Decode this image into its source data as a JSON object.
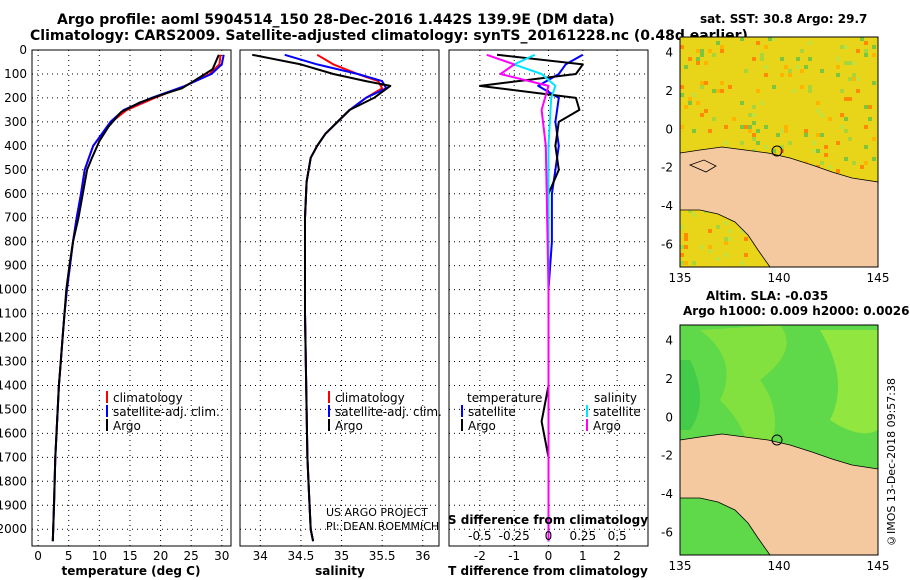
{
  "header": {
    "title1": "Argo profile: aoml 5904514_150 28-Dec-2016 1.442S 139.9E (DM data)",
    "title2": "Climatology: CARS2009. Satellite-adjusted climatology: synTS_20161228.nc (0.48d earlier)"
  },
  "colors": {
    "climatology": "#ff0000",
    "satellite": "#0000ff",
    "argo": "#000000",
    "sat_salinity": "#00e5ff",
    "clim_salinity": "#ff00ff"
  },
  "credit": {
    "line1": "US ARGO PROJECT",
    "line2": "PI: DEAN ROEMMICH"
  },
  "watermark": "©IMOS 13-Dec-2018 09:57:38",
  "maps": {
    "sst": {
      "title": "sat. SST: 30.8 Argo: 29.7"
    },
    "sla": {
      "title1": "Altim. SLA: -0.035",
      "title2": "Argo h1000: 0.009 h2000: 0.0026"
    },
    "xticks": [
      135,
      140,
      145
    ],
    "yticks": [
      4,
      2,
      0,
      -2,
      -4,
      -6
    ]
  },
  "chart_data": [
    {
      "type": "line",
      "id": "temperature",
      "xlabel": "temperature (deg C)",
      "xlim": [
        -1,
        31.5
      ],
      "xticks": [
        0,
        5,
        10,
        15,
        20,
        25,
        30
      ],
      "ylim": [
        0,
        2070
      ],
      "yticks": [
        0,
        100,
        200,
        300,
        400,
        500,
        600,
        700,
        800,
        900,
        1000,
        1100,
        1200,
        1300,
        1400,
        1500,
        1600,
        1700,
        1800,
        1900,
        2000
      ],
      "legend": {
        "position": "bottom-right",
        "items": [
          "climatology",
          "satellite-adj. clim.",
          "Argo"
        ]
      },
      "series": [
        {
          "name": "climatology",
          "x": [
            29.8,
            29.6,
            28.0,
            24.0,
            19.0,
            14.5,
            12.0,
            10.5,
            9.0,
            8.3,
            7.6,
            7.0,
            6.3,
            5.7,
            5.2,
            4.7,
            4.3,
            4.0,
            3.7,
            3.4,
            3.2,
            3.0,
            2.8,
            2.6,
            2.4
          ],
          "y": [
            20,
            60,
            100,
            150,
            200,
            250,
            300,
            350,
            400,
            450,
            500,
            600,
            700,
            800,
            900,
            1000,
            1100,
            1200,
            1300,
            1400,
            1500,
            1600,
            1700,
            1900,
            2050
          ]
        },
        {
          "name": "satellite-adj. clim.",
          "x": [
            30.3,
            30.0,
            28.3,
            24.0,
            18.5,
            14.0,
            11.8,
            10.4,
            9.0,
            8.3,
            7.6,
            7.0,
            6.3,
            5.7,
            5.2,
            4.7,
            4.3,
            4.0,
            3.7,
            3.4,
            3.2,
            3.0,
            2.8,
            2.6,
            2.4
          ],
          "y": [
            20,
            60,
            100,
            150,
            200,
            250,
            300,
            350,
            400,
            450,
            500,
            600,
            700,
            800,
            900,
            1000,
            1100,
            1200,
            1300,
            1400,
            1500,
            1600,
            1700,
            1900,
            2050
          ]
        },
        {
          "name": "Argo",
          "x": [
            29.5,
            28.5,
            26.0,
            23.5,
            21.0,
            16.5,
            13.5,
            11.5,
            10.0,
            8.8,
            8.0,
            7.3,
            6.6,
            5.7,
            5.1,
            4.6,
            4.3,
            4.0,
            3.7,
            3.4,
            3.2,
            3.0,
            2.8,
            2.6,
            2.4
          ],
          "y": [
            20,
            80,
            120,
            160,
            180,
            220,
            260,
            320,
            380,
            450,
            500,
            600,
            700,
            800,
            900,
            1000,
            1100,
            1200,
            1300,
            1400,
            1500,
            1600,
            1700,
            1900,
            2050
          ]
        }
      ]
    },
    {
      "type": "line",
      "id": "salinity",
      "xlabel": "salinity",
      "xlim": [
        33.75,
        36.2
      ],
      "xticks": [
        34,
        34.5,
        35,
        35.5,
        36
      ],
      "xticklabels": [
        "34",
        "34.5",
        "35",
        "35.5",
        "36"
      ],
      "ylim": [
        0,
        2070
      ],
      "legend": {
        "position": "bottom-right",
        "items": [
          "climatology",
          "satellite-adj. clim.",
          "Argo"
        ]
      },
      "series": [
        {
          "name": "climatology",
          "x": [
            34.7,
            34.9,
            35.2,
            35.45,
            35.5,
            35.3,
            35.1,
            34.95,
            34.8,
            34.7,
            34.62,
            34.57,
            34.55,
            34.55,
            34.55,
            34.56,
            34.57,
            34.58,
            34.6,
            34.62,
            34.65
          ],
          "y": [
            20,
            60,
            100,
            130,
            160,
            200,
            250,
            300,
            350,
            400,
            450,
            550,
            700,
            900,
            1100,
            1300,
            1500,
            1700,
            1850,
            2000,
            2050
          ]
        },
        {
          "name": "satellite-adj. clim.",
          "x": [
            34.3,
            34.7,
            35.2,
            35.5,
            35.55,
            35.3,
            35.1,
            34.95,
            34.8,
            34.7,
            34.62,
            34.57,
            34.55,
            34.55,
            34.55,
            34.56,
            34.57,
            34.58,
            34.6,
            34.62,
            34.65
          ],
          "y": [
            20,
            60,
            100,
            130,
            160,
            200,
            250,
            300,
            350,
            400,
            450,
            550,
            700,
            900,
            1100,
            1300,
            1500,
            1700,
            1850,
            2000,
            2050
          ]
        },
        {
          "name": "Argo",
          "x": [
            33.9,
            34.5,
            34.9,
            35.3,
            35.6,
            35.4,
            35.1,
            34.95,
            34.8,
            34.7,
            34.62,
            34.57,
            34.55,
            34.55,
            34.55,
            34.56,
            34.57,
            34.58,
            34.6,
            34.62,
            34.65
          ],
          "y": [
            20,
            60,
            100,
            130,
            150,
            200,
            250,
            300,
            350,
            400,
            450,
            550,
            700,
            900,
            1100,
            1300,
            1500,
            1700,
            1850,
            2000,
            2050
          ]
        }
      ]
    },
    {
      "type": "line",
      "id": "differences",
      "xlabel": "T difference from climatology",
      "xlim": [
        -2.9,
        2.9
      ],
      "xticks": [
        -2,
        -1,
        0,
        1,
        2
      ],
      "xticklabels": [
        "-2",
        "-1",
        "0",
        "1",
        "2"
      ],
      "ylim": [
        0,
        2070
      ],
      "top_label": "S difference from climatology",
      "top_ticks": [
        -0.5,
        -0.25,
        0,
        0.25,
        0.5
      ],
      "top_ticklabels": [
        "-0.5",
        "-0.25",
        "0",
        "0.25",
        "0.5"
      ],
      "legend_left": {
        "header": "temperature",
        "items": [
          "satellite",
          "Argo"
        ]
      },
      "legend_right": {
        "header": "salinity",
        "items": [
          "satellite",
          "Argo"
        ]
      },
      "series": [
        {
          "name": "temperature satellite",
          "x": [
            1.0,
            0.5,
            0.3,
            -0.3,
            0.3,
            0.2,
            0.3,
            0.2,
            0.1,
            0.1,
            0,
            0,
            0,
            0
          ],
          "y": [
            20,
            60,
            100,
            150,
            200,
            300,
            400,
            500,
            600,
            800,
            1000,
            1400,
            1800,
            2050
          ]
        },
        {
          "name": "temperature Argo",
          "x": [
            -1.5,
            1.0,
            0.8,
            -2.0,
            0.8,
            0.9,
            0.3,
            0.2,
            0.3,
            0,
            0,
            0,
            0,
            -0.2,
            0,
            0,
            0
          ],
          "y": [
            20,
            60,
            100,
            150,
            200,
            250,
            300,
            400,
            500,
            600,
            800,
            1000,
            1400,
            1550,
            1700,
            1900,
            2050
          ]
        },
        {
          "name": "salinity satellite",
          "x": [
            -0.1,
            -0.25,
            -0.05,
            0.05,
            0.02,
            0.0,
            0.0,
            0.0
          ],
          "y": [
            20,
            60,
            100,
            150,
            200,
            400,
            1000,
            2050
          ]
        },
        {
          "name": "salinity Argo",
          "x": [
            -0.45,
            -0.25,
            -0.35,
            0.0,
            -0.05,
            -0.02,
            0.0,
            0.0
          ],
          "y": [
            20,
            60,
            100,
            150,
            250,
            400,
            1000,
            2050
          ]
        }
      ]
    }
  ]
}
